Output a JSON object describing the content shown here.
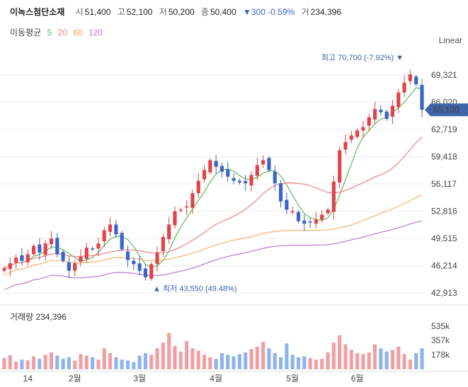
{
  "header": {
    "name": "이녹스첨단소재",
    "open_label": "시",
    "open": "51,400",
    "high_label": "고",
    "high": "52,100",
    "low_label": "저",
    "low": "50,200",
    "close_label": "종",
    "close": "50,400",
    "change": "▼300 -0.59%",
    "volume_label": "거",
    "volume": "234,396"
  },
  "ma_legend": {
    "title": "이동평균",
    "p5": "5",
    "p20": "20",
    "p60": "60",
    "p120": "120"
  },
  "scale_label": "Linear",
  "volume_panel_label": "거래량 234,396",
  "colors": {
    "up": "#e0434a",
    "down": "#3b64c9",
    "ma5": "#5cb85c",
    "ma20": "#f08080",
    "ma60": "#f5b26b",
    "ma120": "#b57ad6",
    "current": "#3d63a8"
  },
  "chart_data": {
    "type": "candlestick",
    "y_ticks": [
      "69,321",
      "66,020",
      "62,719",
      "59,418",
      "56,117",
      "52,816",
      "49,515",
      "46,214",
      "42,913"
    ],
    "y_tick_values": [
      69321,
      66020,
      62719,
      59418,
      56117,
      52816,
      49515,
      46214,
      42913
    ],
    "x_ticks": [
      {
        "label": "14",
        "index": 4
      },
      {
        "label": "2월",
        "index": 12
      },
      {
        "label": "3월",
        "index": 23
      },
      {
        "label": "4월",
        "index": 36
      },
      {
        "label": "5월",
        "index": 49
      },
      {
        "label": "6월",
        "index": 60
      }
    ],
    "volume_ticks": [
      "535k",
      "357k",
      "178k"
    ],
    "volume_tick_values": [
      535000,
      357000,
      178000
    ],
    "current_price": "65,100",
    "current_value": 65100,
    "max_label": "최고 70,700 (-7.92%)",
    "max_value": 70700,
    "min_label": "최저 43,550 (49.48%)",
    "min_value": 43550,
    "closes": [
      45900,
      46500,
      47200,
      46800,
      47600,
      48600,
      47800,
      48900,
      49500,
      47600,
      46800,
      45600,
      46500,
      47300,
      48400,
      48200,
      48900,
      50500,
      51200,
      50000,
      48200,
      46900,
      46400,
      45600,
      44800,
      46400,
      47800,
      49700,
      51200,
      52800,
      53000,
      53400,
      55000,
      56500,
      57800,
      59000,
      58200,
      57600,
      57000,
      56500,
      56300,
      56200,
      57200,
      58400,
      59000,
      57800,
      56200,
      54000,
      53000,
      52800,
      51600,
      51300,
      51500,
      51800,
      52400,
      53000,
      56400,
      60200,
      61200,
      62000,
      62600,
      63000,
      64200,
      65200,
      64800,
      64000,
      65600,
      67200,
      68400,
      69400,
      68200,
      65100
    ],
    "volumes": [
      140000,
      175000,
      95000,
      120000,
      110000,
      160000,
      130000,
      180000,
      210000,
      170000,
      130000,
      150000,
      110000,
      190000,
      170000,
      150000,
      120000,
      260000,
      200000,
      150000,
      120000,
      110000,
      90000,
      170000,
      200000,
      180000,
      260000,
      330000,
      450000,
      290000,
      220000,
      350000,
      260000,
      230000,
      180000,
      150000,
      130000,
      200000,
      180000,
      160000,
      190000,
      210000,
      250000,
      280000,
      340000,
      260000,
      200000,
      150000,
      320000,
      180000,
      150000,
      160000,
      140000,
      120000,
      130000,
      210000,
      330000,
      420000,
      310000,
      240000,
      200000,
      190000,
      210000,
      310000,
      260000,
      220000,
      240000,
      280000,
      190000,
      120000,
      200000,
      260000
    ]
  }
}
